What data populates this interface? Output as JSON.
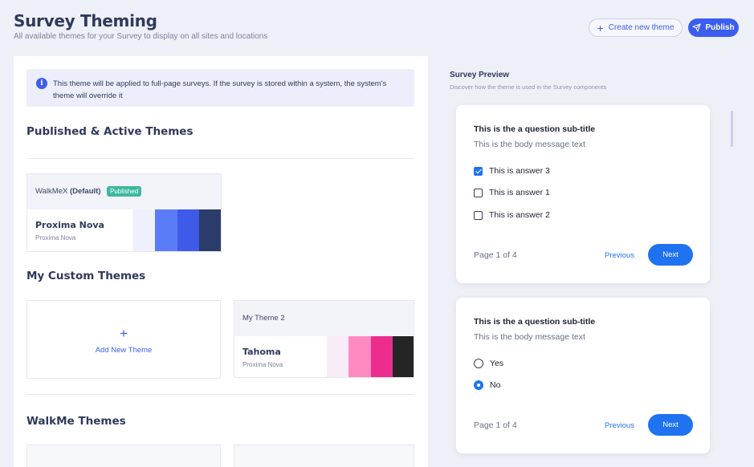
{
  "header": {
    "title": "Survey Theming",
    "subtitle": "All available themes for your Survey to display on all sites and locations",
    "create_label": "Create new theme",
    "create_icon": "plus-icon",
    "publish_label": "Publish",
    "publish_icon": "send-icon"
  },
  "info": {
    "icon": "info-icon",
    "icon_glyph": "i",
    "text": "This theme will be applied to full-page surveys. If the survey is stored within a system, the system's theme will override it"
  },
  "sections": {
    "published": "Published & Active Themes",
    "custom": "My Custom Themes",
    "walkme": "WalkMe Themes"
  },
  "published_theme": {
    "name_prefix": "WalkMeX",
    "name_bold": "(Default)",
    "badge": "Published",
    "badge_color": "#3cb8a0",
    "font_title": "Proxima Nova",
    "font_sub": "Proxima Nova",
    "colors": [
      "#eef1fd",
      "#5b7cf7",
      "#3d5ae8",
      "#2c3c6a"
    ]
  },
  "custom_themes": {
    "add_label": "Add New Theme",
    "add_icon": "plus-icon",
    "theme2": {
      "name": "My Theme 2",
      "font_title": "Tahoma",
      "font_sub": "Proxima Nova",
      "colors": [
        "#f9ecf9",
        "#ff8ac2",
        "#ec2d8e",
        "#252525"
      ]
    }
  },
  "preview": {
    "title": "Survey Preview",
    "subtitle": "Discover how the theme is used in the Survey components",
    "card1": {
      "sub_title": "This is the a question sub-title",
      "body": "This is the body message text",
      "options": [
        {
          "label": "This is answer 3",
          "checked": true
        },
        {
          "label": "This is answer 1",
          "checked": false
        },
        {
          "label": "This is answer 2",
          "checked": false
        }
      ],
      "page": "Page 1 of 4",
      "previous": "Previous",
      "next": "Next"
    },
    "card2": {
      "sub_title": "This is the a question sub-title",
      "body": "This is the body message text",
      "options": [
        {
          "label": "Yes",
          "selected": false
        },
        {
          "label": "No",
          "selected": true
        }
      ],
      "page": "Page 1 of 4",
      "previous": "Previous",
      "next": "Next"
    }
  },
  "colors": {
    "accent": "#3b5ef0",
    "preview_accent": "#1f73f0"
  }
}
